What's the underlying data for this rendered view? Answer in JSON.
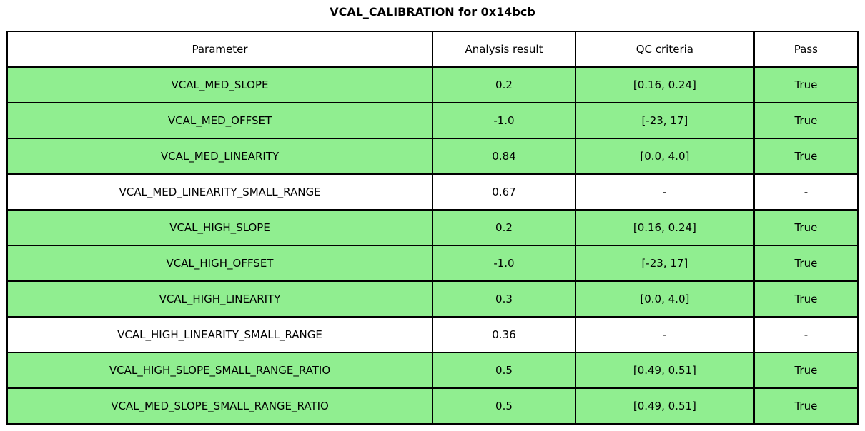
{
  "title": "VCAL_CALIBRATION for 0x14bcb",
  "colors": {
    "pass_row_background": "#90ee90",
    "neutral_row_background": "#ffffff",
    "border": "#000000",
    "text": "#000000"
  },
  "chart_data": {
    "type": "table",
    "title": "VCAL_CALIBRATION for 0x14bcb",
    "columns": [
      "Parameter",
      "Analysis result",
      "QC criteria",
      "Pass"
    ],
    "rows": [
      {
        "parameter": "VCAL_MED_SLOPE",
        "result": "0.2",
        "criteria": "[0.16, 0.24]",
        "pass": "True",
        "highlight": true
      },
      {
        "parameter": "VCAL_MED_OFFSET",
        "result": "-1.0",
        "criteria": "[-23, 17]",
        "pass": "True",
        "highlight": true
      },
      {
        "parameter": "VCAL_MED_LINEARITY",
        "result": "0.84",
        "criteria": "[0.0, 4.0]",
        "pass": "True",
        "highlight": true
      },
      {
        "parameter": "VCAL_MED_LINEARITY_SMALL_RANGE",
        "result": "0.67",
        "criteria": "-",
        "pass": "-",
        "highlight": false
      },
      {
        "parameter": "VCAL_HIGH_SLOPE",
        "result": "0.2",
        "criteria": "[0.16, 0.24]",
        "pass": "True",
        "highlight": true
      },
      {
        "parameter": "VCAL_HIGH_OFFSET",
        "result": "-1.0",
        "criteria": "[-23, 17]",
        "pass": "True",
        "highlight": true
      },
      {
        "parameter": "VCAL_HIGH_LINEARITY",
        "result": "0.3",
        "criteria": "[0.0, 4.0]",
        "pass": "True",
        "highlight": true
      },
      {
        "parameter": "VCAL_HIGH_LINEARITY_SMALL_RANGE",
        "result": "0.36",
        "criteria": "-",
        "pass": "-",
        "highlight": false
      },
      {
        "parameter": "VCAL_HIGH_SLOPE_SMALL_RANGE_RATIO",
        "result": "0.5",
        "criteria": "[0.49, 0.51]",
        "pass": "True",
        "highlight": true
      },
      {
        "parameter": "VCAL_MED_SLOPE_SMALL_RANGE_RATIO",
        "result": "0.5",
        "criteria": "[0.49, 0.51]",
        "pass": "True",
        "highlight": true
      }
    ]
  }
}
